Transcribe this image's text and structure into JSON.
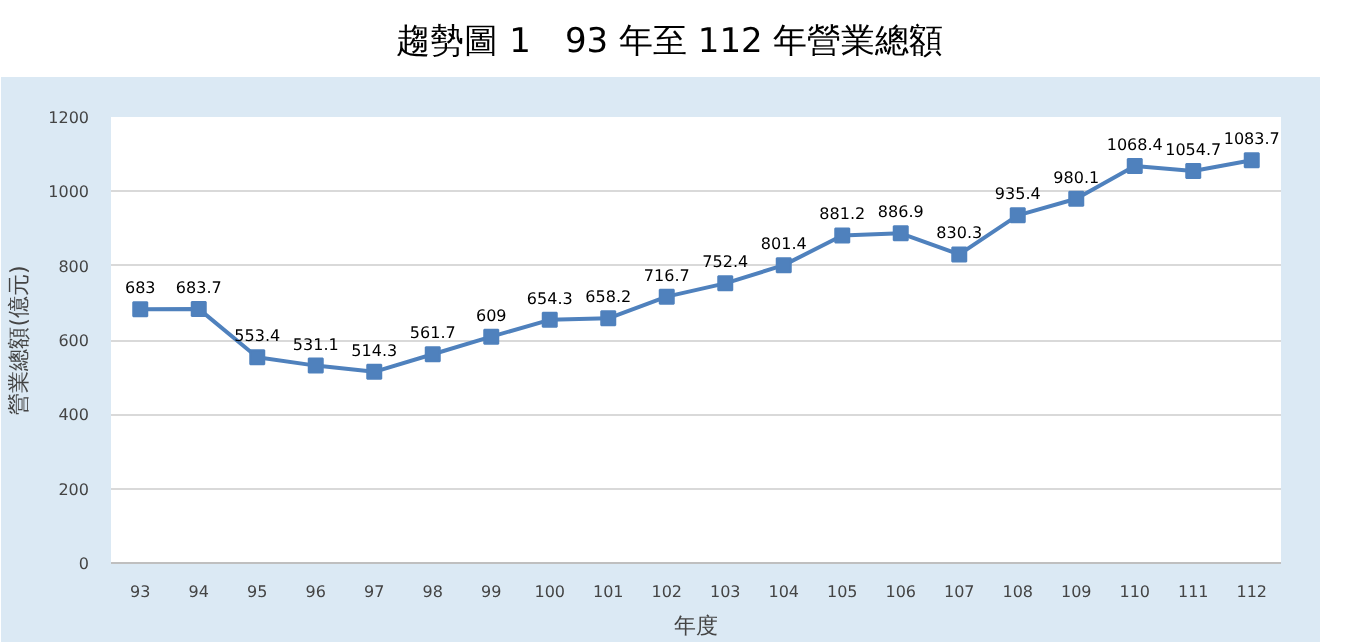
{
  "chart_data": {
    "type": "line",
    "title": "趨勢圖 1　93 年至 112 年營業總額",
    "xlabel": "年度",
    "ylabel": "營業總額(億元)",
    "categories": [
      "93",
      "94",
      "95",
      "96",
      "97",
      "98",
      "99",
      "100",
      "101",
      "102",
      "103",
      "104",
      "105",
      "106",
      "107",
      "108",
      "109",
      "110",
      "111",
      "112"
    ],
    "series": [
      {
        "color": "#4f81bd",
        "values": [
          683,
          683.7,
          553.4,
          531.1,
          514.3,
          561.7,
          609,
          654.3,
          658.2,
          716.7,
          752.4,
          801.4,
          881.2,
          886.9,
          830.3,
          935.4,
          980.1,
          1068.4,
          1054.7,
          1083.7
        ]
      }
    ],
    "ylim": [
      0,
      1200
    ],
    "yticks": [
      0,
      200,
      400,
      600,
      800,
      1000,
      1200
    ],
    "grid": "y",
    "marker": "square",
    "line_style": "solid",
    "data_labels": true
  }
}
